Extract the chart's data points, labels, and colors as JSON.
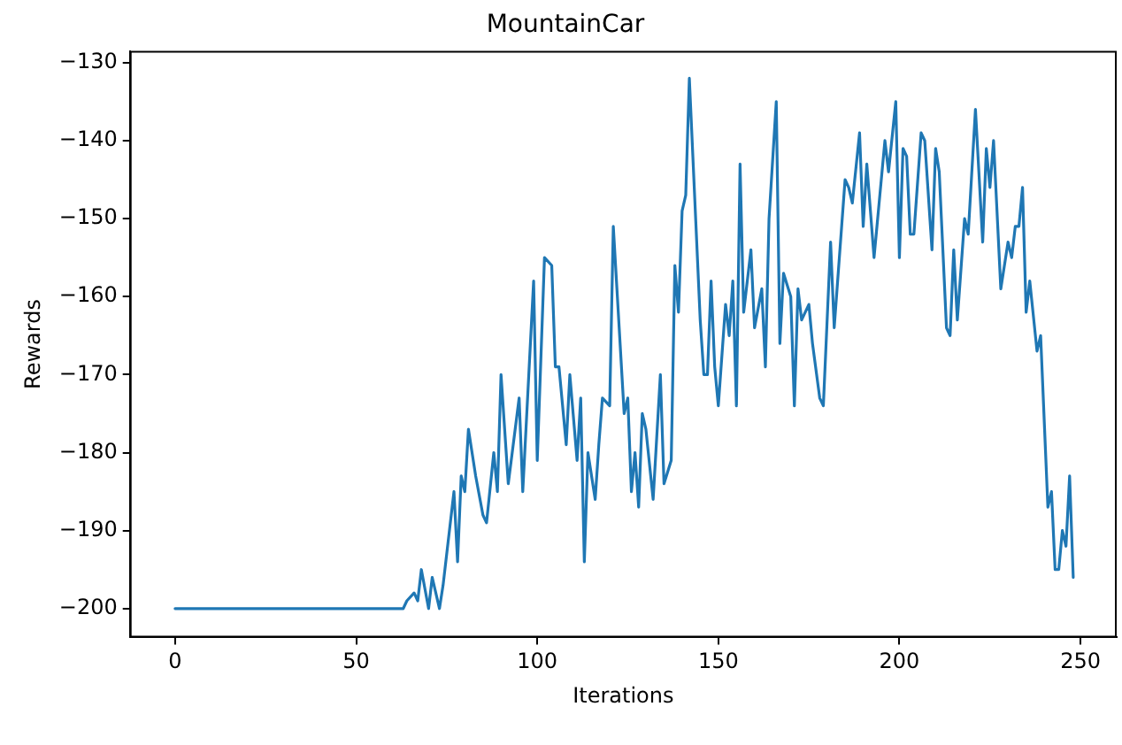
{
  "chart_data": {
    "type": "line",
    "title": "MountainCar",
    "xlabel": "Iterations",
    "ylabel": "Rewards",
    "x": [
      0,
      63,
      64,
      66,
      67,
      68,
      70,
      71,
      73,
      74,
      77,
      78,
      79,
      80,
      81,
      83,
      85,
      86,
      88,
      89,
      90,
      92,
      95,
      96,
      99,
      100,
      102,
      104,
      105,
      106,
      108,
      109,
      111,
      112,
      113,
      114,
      116,
      117,
      118,
      120,
      121,
      124,
      125,
      126,
      127,
      128,
      129,
      130,
      132,
      134,
      135,
      137,
      138,
      139,
      140,
      141,
      142,
      145,
      146,
      147,
      148,
      149,
      150,
      152,
      153,
      154,
      155,
      156,
      157,
      159,
      160,
      162,
      163,
      164,
      166,
      167,
      168,
      170,
      171,
      172,
      173,
      175,
      176,
      178,
      179,
      181,
      182,
      185,
      186,
      187,
      189,
      190,
      191,
      193,
      196,
      197,
      199,
      200,
      201,
      202,
      203,
      204,
      206,
      207,
      209,
      210,
      211,
      213,
      214,
      215,
      216,
      218,
      219,
      221,
      223,
      224,
      225,
      226,
      228,
      230,
      231,
      232,
      233,
      234,
      235,
      236,
      238,
      239,
      241,
      242,
      243,
      244,
      245,
      246,
      247,
      248
    ],
    "series": [
      {
        "color": "#1f77b4",
        "values": [
          -200,
          -200,
          -199,
          -198,
          -199,
          -195,
          -200,
          -196,
          -200,
          -197,
          -185,
          -194,
          -183,
          -185,
          -177,
          -183,
          -188,
          -189,
          -180,
          -185,
          -170,
          -184,
          -173,
          -185,
          -158,
          -181,
          -155,
          -156,
          -169,
          -169,
          -179,
          -170,
          -181,
          -173,
          -194,
          -180,
          -186,
          -179,
          -173,
          -174,
          -151,
          -175,
          -173,
          -185,
          -180,
          -187,
          -175,
          -177,
          -186,
          -170,
          -184,
          -181,
          -156,
          -162,
          -149,
          -147,
          -132,
          -163,
          -170,
          -170,
          -158,
          -169,
          -174,
          -161,
          -165,
          -158,
          -174,
          -143,
          -162,
          -154,
          -164,
          -159,
          -169,
          -150,
          -135,
          -166,
          -157,
          -160,
          -174,
          -159,
          -163,
          -161,
          -166,
          -173,
          -174,
          -153,
          -164,
          -145,
          -146,
          -148,
          -139,
          -151,
          -143,
          -155,
          -140,
          -144,
          -135,
          -155,
          -141,
          -142,
          -152,
          -152,
          -139,
          -140,
          -154,
          -141,
          -144,
          -164,
          -165,
          -154,
          -163,
          -150,
          -152,
          -136,
          -153,
          -141,
          -146,
          -140,
          -159,
          -153,
          -155,
          -151,
          -151,
          -146,
          -162,
          -158,
          -167,
          -165,
          -187,
          -185,
          -195,
          -195,
          -190,
          -192,
          -183,
          -196
        ]
      }
    ],
    "xlim": [
      -12.5,
      260
    ],
    "ylim": [
      -203.7,
      -128.5
    ],
    "xticks": [
      0,
      50,
      100,
      150,
      200,
      250
    ],
    "yticks": [
      -200,
      -190,
      -180,
      -170,
      -160,
      -150,
      -140,
      -130
    ],
    "grid": false,
    "legend": false,
    "marker": "none",
    "line_style": "solid"
  }
}
